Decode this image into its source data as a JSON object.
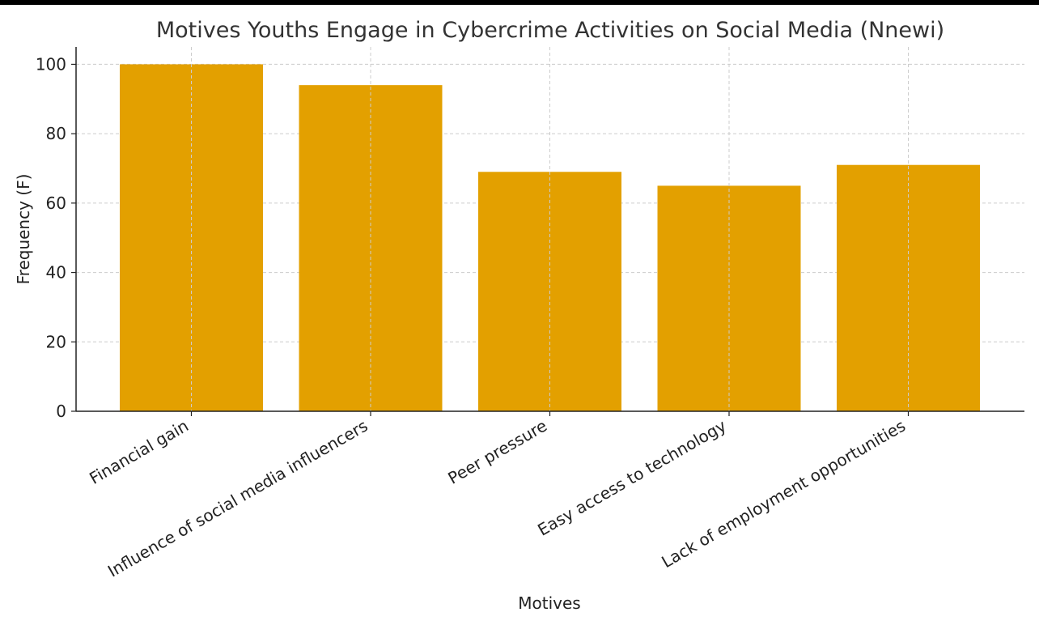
{
  "chart_data": {
    "type": "bar",
    "title": "Motives Youths Engage in Cybercrime Activities on Social Media (Nnewi)",
    "xlabel": "Motives",
    "ylabel": "Frequency (F)",
    "categories": [
      "Financial gain",
      "Influence of social media influencers",
      "Peer pressure",
      "Easy access to technology",
      "Lack of employment opportunities"
    ],
    "values": [
      100,
      94,
      69,
      65,
      71
    ],
    "ylim": [
      0,
      105
    ],
    "yticks": [
      0,
      20,
      40,
      60,
      80,
      100
    ],
    "grid": true,
    "bar_color": "#E3A000"
  }
}
